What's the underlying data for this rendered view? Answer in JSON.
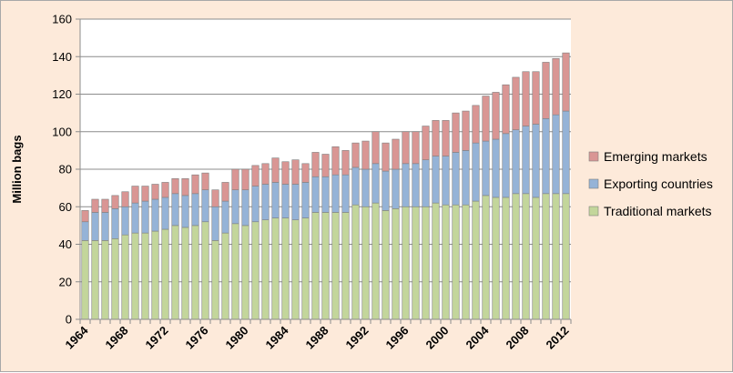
{
  "chart_data": {
    "type": "bar",
    "stacked": true,
    "title": "",
    "xlabel": "",
    "ylabel": "Million bags",
    "ylim": [
      0,
      160
    ],
    "yticks": [
      0,
      20,
      40,
      60,
      80,
      100,
      120,
      140,
      160
    ],
    "grid": "horizontal",
    "legend_position": "right",
    "background_color": "#fdeada",
    "plot_background_color": "#ffffff",
    "x_tick_labels": [
      "1964",
      "1968",
      "1972",
      "1976",
      "1980",
      "1984",
      "1988",
      "1992",
      "1996",
      "2000",
      "2004",
      "2008",
      "2012"
    ],
    "categories": [
      "1964",
      "1965",
      "1966",
      "1967",
      "1968",
      "1969",
      "1970",
      "1971",
      "1972",
      "1973",
      "1974",
      "1975",
      "1976",
      "1977",
      "1978",
      "1979",
      "1980",
      "1981",
      "1982",
      "1983",
      "1984",
      "1985",
      "1986",
      "1987",
      "1988",
      "1989",
      "1990",
      "1991",
      "1992",
      "1993",
      "1994",
      "1995",
      "1996",
      "1997",
      "1998",
      "1999",
      "2000",
      "2001",
      "2002",
      "2003",
      "2004",
      "2005",
      "2006",
      "2007",
      "2008",
      "2009",
      "2010",
      "2011",
      "2012"
    ],
    "series": [
      {
        "name": "Traditional markets",
        "color": "#c3d69b",
        "values": [
          42,
          42,
          42,
          43,
          45,
          46,
          46,
          47,
          48,
          50,
          49,
          50,
          52,
          42,
          46,
          51,
          50,
          52,
          53,
          54,
          54,
          53,
          54,
          57,
          57,
          57,
          57,
          61,
          60,
          62,
          58,
          59,
          60,
          60,
          60,
          62,
          61,
          61,
          61,
          63,
          66,
          65,
          65,
          67,
          67,
          65,
          67,
          67,
          67
        ]
      },
      {
        "name": "Exporting countries",
        "color": "#95b3d7",
        "values": [
          10,
          15,
          15,
          16,
          15,
          16,
          17,
          17,
          17,
          17,
          17,
          17,
          17,
          18,
          17,
          18,
          19,
          19,
          19,
          19,
          18,
          19,
          19,
          19,
          19,
          20,
          20,
          20,
          20,
          21,
          21,
          21,
          23,
          23,
          25,
          25,
          26,
          28,
          29,
          31,
          29,
          31,
          34,
          34,
          36,
          39,
          40,
          42,
          44
        ]
      },
      {
        "name": "Emerging markets",
        "color": "#d99694",
        "values": [
          6,
          7,
          7,
          7,
          8,
          9,
          8,
          8,
          8,
          8,
          9,
          10,
          9,
          9,
          10,
          11,
          11,
          11,
          11,
          13,
          12,
          13,
          10,
          13,
          12,
          15,
          13,
          13,
          15,
          17,
          15,
          16,
          17,
          17,
          18,
          19,
          19,
          21,
          21,
          20,
          24,
          25,
          26,
          28,
          29,
          28,
          30,
          30,
          31
        ]
      }
    ]
  }
}
